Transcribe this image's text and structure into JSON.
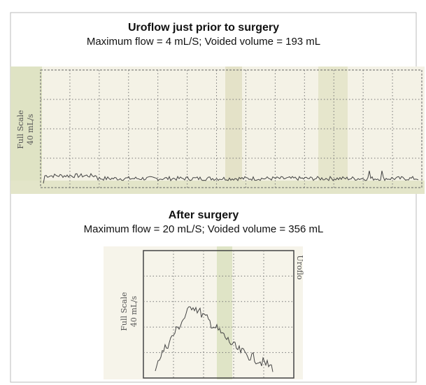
{
  "figure": {
    "top": {
      "title": "Uroflow just prior to surgery",
      "subtitle": "Maximum flow = 4 mL/S;  Voided volume = 193 mL",
      "scale_label": [
        "Full Scale",
        "40 mL/s"
      ]
    },
    "bottom": {
      "title": "After surgery",
      "subtitle": "Maximum flow = 20 mL/S;  Voided volume = 356 mL",
      "scale_label": [
        "Full Scale",
        "40 mL/s"
      ],
      "side_label": "Uroflo"
    }
  }
}
